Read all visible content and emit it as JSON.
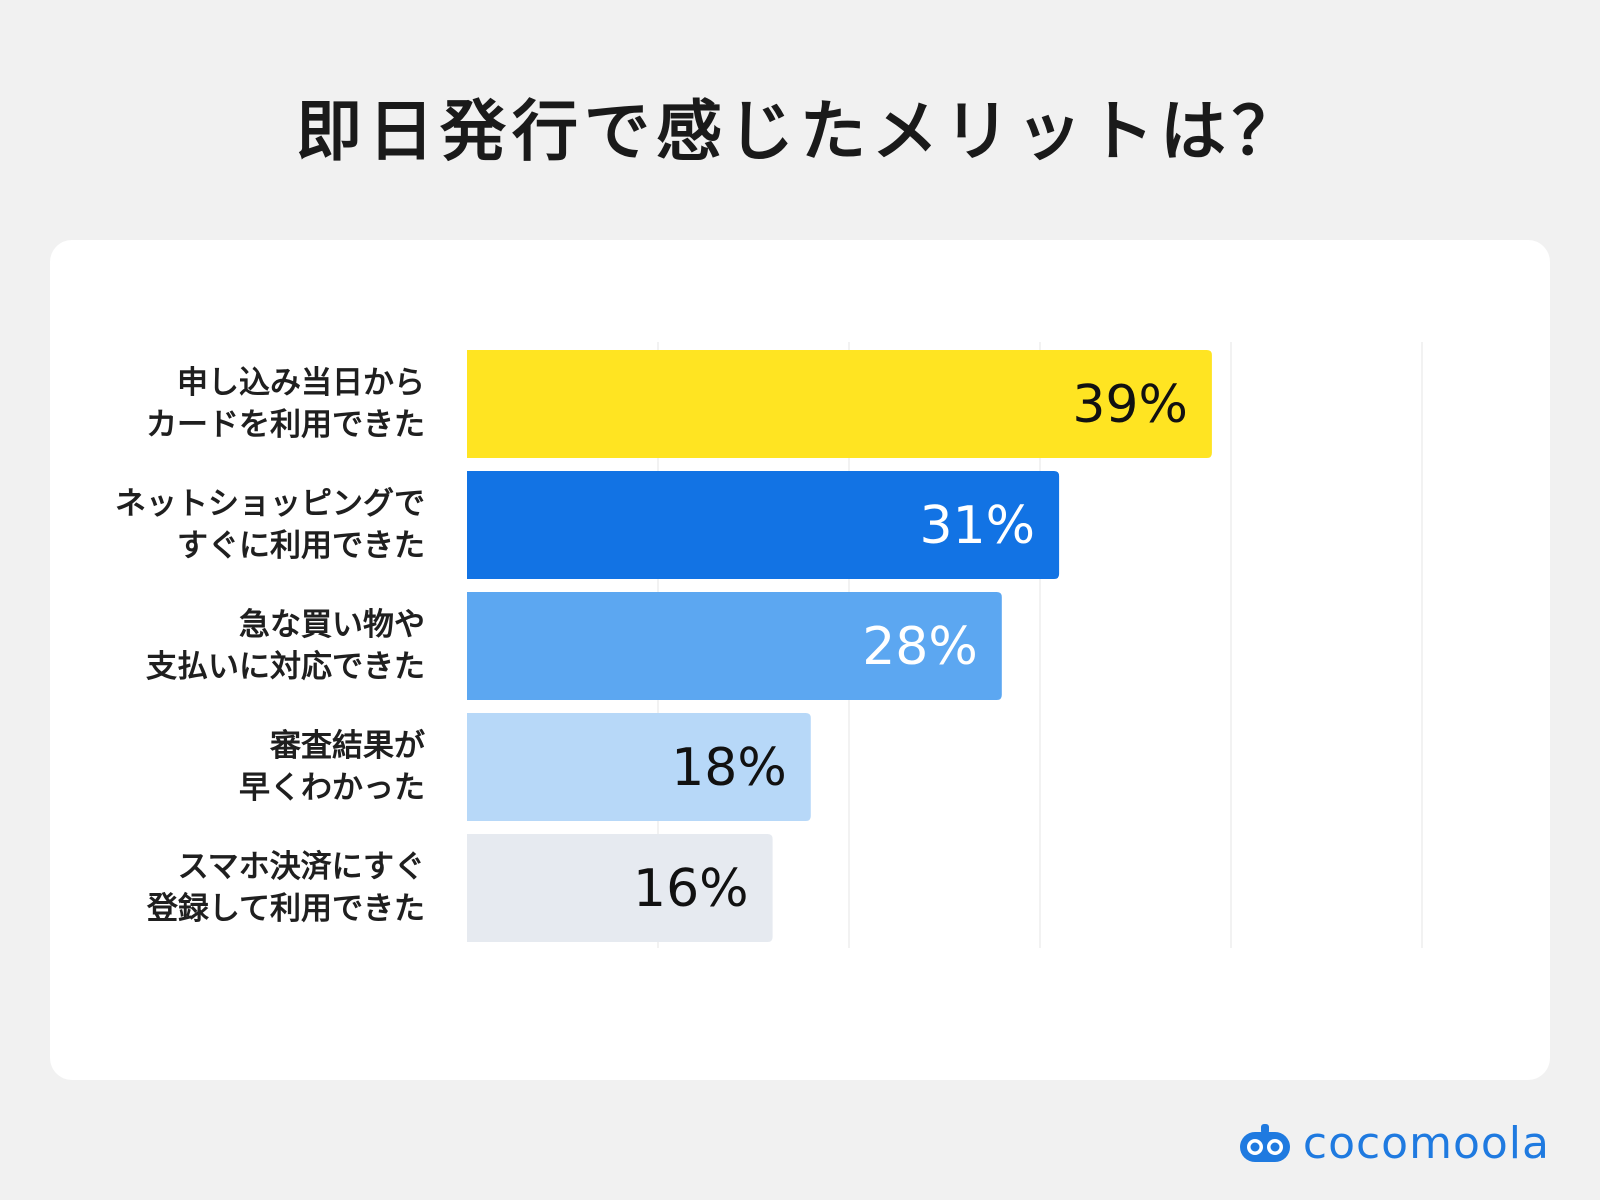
{
  "title": "即日発行で感じたメリットは？",
  "brand": {
    "name": "cocomoola",
    "icon": "robot-face-icon",
    "color": "#1f7ae0"
  },
  "chart_data": {
    "type": "bar",
    "orientation": "horizontal",
    "title": "即日発行で感じたメリットは？",
    "xlabel": "",
    "ylabel": "",
    "xlim": [
      0,
      50
    ],
    "grid": true,
    "legend": "none",
    "categories": [
      [
        "申し込み当日から",
        "カードを利用できた"
      ],
      [
        "ネットショッピングで",
        "すぐに利用できた"
      ],
      [
        "急な買い物や",
        "支払いに対応できた"
      ],
      [
        "審査結果が",
        "早くわかった"
      ],
      [
        "スマホ決済にすぐ",
        "登録して利用できた"
      ]
    ],
    "values": [
      39,
      31,
      28,
      18,
      16
    ],
    "value_labels": [
      "39%",
      "31%",
      "28%",
      "18%",
      "16%"
    ],
    "bar_colors": [
      "#ffe422",
      "#1273e4",
      "#5ca7f1",
      "#b7d8f8",
      "#e6eaf0"
    ],
    "label_colors": [
      "#111111",
      "#ffffff",
      "#ffffff",
      "#111111",
      "#111111"
    ]
  }
}
